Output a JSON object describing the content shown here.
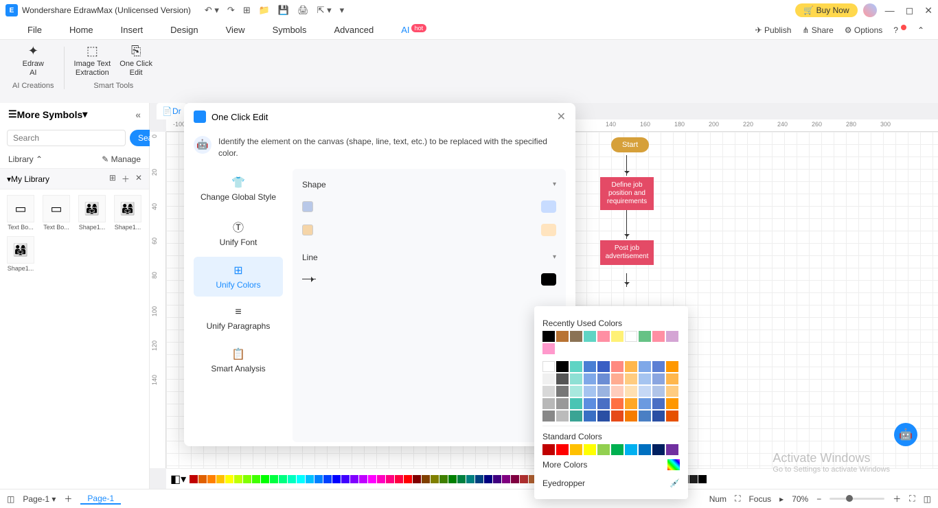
{
  "titlebar": {
    "app_name": "Wondershare EdrawMax (Unlicensed Version)",
    "buy_label": "Buy Now"
  },
  "menubar": {
    "items": [
      "File",
      "Home",
      "Insert",
      "Design",
      "View",
      "Symbols",
      "Advanced",
      "AI"
    ],
    "hot_badge": "hot",
    "right": {
      "publish": "Publish",
      "share": "Share",
      "options": "Options"
    }
  },
  "ribbon": {
    "group1_label": "AI Creations",
    "group2_label": "Smart Tools",
    "items": [
      {
        "icon": "✦",
        "label": "Edraw\nAI"
      },
      {
        "icon": "⬚",
        "label": "Image Text\nExtraction"
      },
      {
        "icon": "⎘",
        "label": "One Click\nEdit"
      }
    ]
  },
  "sidebar": {
    "title": "More Symbols",
    "search_placeholder": "Search",
    "search_btn": "Search",
    "library_label": "Library",
    "manage_label": "Manage",
    "mylib_label": "My Library",
    "shapes": [
      {
        "label": "Text Bo...",
        "thumb": "▭"
      },
      {
        "label": "Text Bo...",
        "thumb": "▭"
      },
      {
        "label": "Shape1...",
        "thumb": "👨‍👩‍👧"
      },
      {
        "label": "Shape1...",
        "thumb": "👨‍👩‍👧"
      },
      {
        "label": "Shape1...",
        "thumb": "👨‍👩‍👧"
      }
    ]
  },
  "doc_tab": "Dr",
  "ruler_h_ticks": [
    "-100",
    "140",
    "160",
    "180",
    "200",
    "220",
    "240",
    "260",
    "280",
    "300"
  ],
  "ruler_v_ticks": [
    "0",
    "20",
    "40",
    "60",
    "80",
    "100",
    "120",
    "140"
  ],
  "dialog": {
    "title": "One Click Edit",
    "hint": "Identify the element on the canvas (shape, line, text, etc.) to be replaced with the specified color.",
    "left_items": [
      {
        "icon": "👕",
        "label": "Change Global Style"
      },
      {
        "icon": "Ⓣ",
        "label": "Unify Font"
      },
      {
        "icon": "⊞",
        "label": "Unify Colors"
      },
      {
        "icon": "≡",
        "label": "Unify Paragraphs"
      },
      {
        "icon": "📋",
        "label": "Smart Analysis"
      }
    ],
    "active_index": 2,
    "shape_label": "Shape",
    "line_label": "Line",
    "shape_swatches": [
      {
        "src": "#b8c8e8",
        "dest": "#c8dcff"
      },
      {
        "src": "#f5d5a8",
        "dest": "#ffe4bf"
      }
    ],
    "line_swatch_dest": "#000000"
  },
  "color_popup": {
    "recent_label": "Recently Used Colors",
    "recent_colors": [
      "#000000",
      "#b87333",
      "#8b7355",
      "#5fd4c4",
      "#ff8fa3",
      "#fff176",
      "#ffffff",
      "#66c285",
      "#ff8fa3",
      "#d4a5d4",
      "#ff99cc"
    ],
    "palette_colors": [
      "#ffffff",
      "#000000",
      "#5fd4c4",
      "#4a7fd4",
      "#3a5fc4",
      "#ff8a80",
      "#ffb74d",
      "#7fa8e8",
      "#5c7fd4",
      "#ff9800",
      "#f0f0f0",
      "#555555",
      "#8ee0d4",
      "#7fa8e8",
      "#6b8dd4",
      "#ffab91",
      "#ffcc80",
      "#a5c4f0",
      "#8aa5e0",
      "#ffb74d",
      "#d8d8d8",
      "#777777",
      "#a8e8de",
      "#a5c4f0",
      "#9ab3e0",
      "#ffccbc",
      "#ffe0b2",
      "#c5d8f5",
      "#b0c4e8",
      "#ffcc80",
      "#b8b8b8",
      "#999999",
      "#4ac4b4",
      "#5c8de0",
      "#4a6fc4",
      "#ff7043",
      "#ffa726",
      "#6b9ae0",
      "#4a6fc4",
      "#ff9800",
      "#888888",
      "#bbbbbb",
      "#3aa494",
      "#3a6fc4",
      "#2a4fa4",
      "#e64a19",
      "#f57c00",
      "#4a7fc4",
      "#2a4fa4",
      "#e65100"
    ],
    "standard_label": "Standard Colors",
    "standard_colors": [
      "#c00000",
      "#ff0000",
      "#ffc000",
      "#ffff00",
      "#92d050",
      "#00b050",
      "#00b0f0",
      "#0070c0",
      "#002060",
      "#7030a0"
    ],
    "more_label": "More Colors",
    "eyedropper_label": "Eyedropper"
  },
  "flowchart": {
    "start_label": "Start",
    "box1_label": "Define job position and requirements",
    "box2_label": "Post job advertisement"
  },
  "color_strip": [
    "#c00000",
    "#e06000",
    "#ff8000",
    "#ffc000",
    "#ffff00",
    "#c0ff00",
    "#80ff00",
    "#40ff00",
    "#00ff00",
    "#00ff40",
    "#00ff80",
    "#00ffc0",
    "#00ffff",
    "#00c0ff",
    "#0080ff",
    "#0040ff",
    "#0000ff",
    "#4000ff",
    "#8000ff",
    "#c000ff",
    "#ff00ff",
    "#ff00c0",
    "#ff0080",
    "#ff0040",
    "#ff0000",
    "#800000",
    "#804000",
    "#808000",
    "#408000",
    "#008000",
    "#008040",
    "#008080",
    "#004080",
    "#000080",
    "#400080",
    "#800080",
    "#800040",
    "#b03030",
    "#b06030",
    "#b0b030",
    "#60b030",
    "#30b030",
    "#30b060",
    "#30b0b0",
    "#3060b0",
    "#3030b0",
    "#6030b0",
    "#b030b0",
    "#b03060",
    "#ffffff",
    "#e0e0e0",
    "#c0c0c0",
    "#a0a0a0",
    "#808080",
    "#606060",
    "#404040",
    "#202020",
    "#000000"
  ],
  "statusbar": {
    "page_label": "Page-1",
    "page_tab": "Page-1",
    "num_label": "Num",
    "focus_label": "Focus",
    "zoom_label": "70%"
  },
  "watermark": {
    "line1": "Activate Windows",
    "line2": "Go to Settings to activate Windows"
  }
}
